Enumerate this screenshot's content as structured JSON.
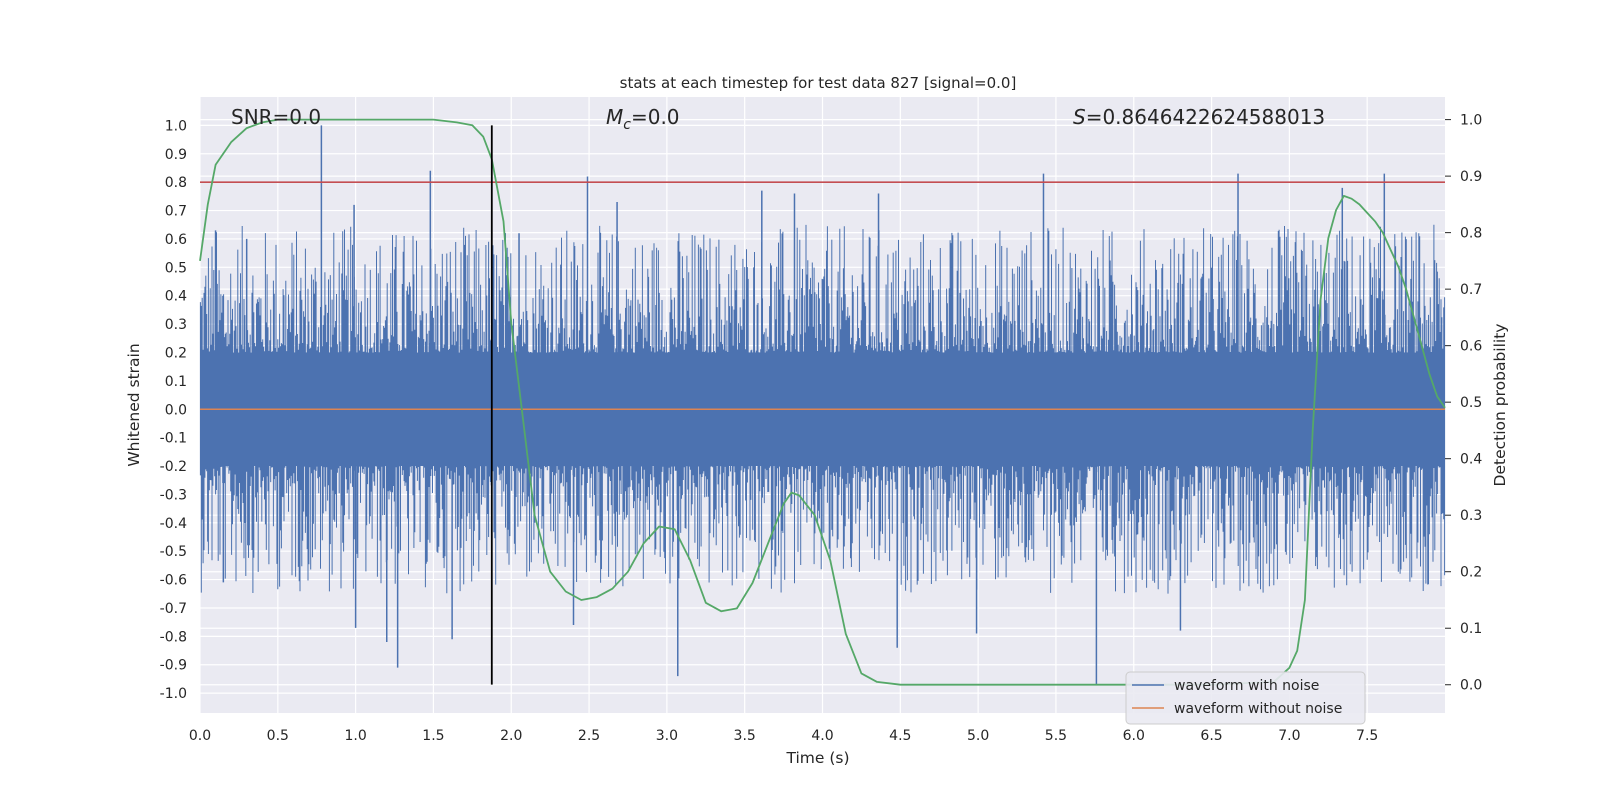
{
  "chart_data": {
    "type": "line",
    "title": "stats at each timestep for test data 827 [signal=0.0]",
    "xlabel": "Time (s)",
    "ylabel_left": "Whitened strain",
    "ylabel_right": "Detection probability",
    "xlim": [
      0.0,
      8.0
    ],
    "ylim_left": [
      -1.07,
      1.1
    ],
    "ylim_right": [
      -0.05,
      1.04
    ],
    "x_ticks": [
      "0.0",
      "0.5",
      "1.0",
      "1.5",
      "2.0",
      "2.5",
      "3.0",
      "3.5",
      "4.0",
      "4.5",
      "5.0",
      "5.5",
      "6.0",
      "6.5",
      "7.0",
      "7.5"
    ],
    "y_ticks_left": [
      "1.0",
      "0.9",
      "0.8",
      "0.7",
      "0.6",
      "0.5",
      "0.4",
      "0.3",
      "0.2",
      "0.1",
      "0.0",
      "-0.1",
      "-0.2",
      "-0.3",
      "-0.4",
      "-0.5",
      "-0.6",
      "-0.7",
      "-0.8",
      "-0.9",
      "-1.0"
    ],
    "y_ticks_right": [
      "1.0",
      "0.9",
      "0.8",
      "0.7",
      "0.6",
      "0.5",
      "0.4",
      "0.3",
      "0.2",
      "0.1",
      "0.0"
    ],
    "grid": true,
    "legend_placement": "lower-right",
    "annotations": {
      "snr": "SNR=0.0",
      "mc_symbol": "M",
      "mc_subscript": "c",
      "mc_value": "=0.0",
      "s_symbol": "S",
      "s_value": "=0.8646422624588013"
    },
    "threshold_left": 0.8,
    "vline_x": 1.875,
    "vline_range": [
      -0.97,
      1.0
    ],
    "series": [
      {
        "name": "waveform with noise",
        "color": "#4c72b0",
        "axis": "left",
        "style": "dense-noise",
        "dense_amplitude": 0.18,
        "spike_peaks": [
          {
            "x": 0.78,
            "y": 1.0
          },
          {
            "x": 1.48,
            "y": 0.84
          },
          {
            "x": 0.99,
            "y": 0.72
          },
          {
            "x": 2.49,
            "y": 0.82
          },
          {
            "x": 2.68,
            "y": 0.73
          },
          {
            "x": 5.42,
            "y": 0.83
          },
          {
            "x": 6.67,
            "y": 0.83
          },
          {
            "x": 7.61,
            "y": 0.83
          },
          {
            "x": 7.34,
            "y": 0.78
          },
          {
            "x": 3.61,
            "y": 0.77
          },
          {
            "x": 3.82,
            "y": 0.76
          },
          {
            "x": 4.36,
            "y": 0.76
          },
          {
            "x": 0.1,
            "y": 0.63
          },
          {
            "x": 0.3,
            "y": 0.6
          },
          {
            "x": 2.05,
            "y": 0.62
          }
        ],
        "spike_troughs": [
          {
            "x": 1.27,
            "y": -0.91
          },
          {
            "x": 1.2,
            "y": -0.82
          },
          {
            "x": 1.62,
            "y": -0.81
          },
          {
            "x": 3.07,
            "y": -0.94
          },
          {
            "x": 5.76,
            "y": -0.97
          },
          {
            "x": 4.48,
            "y": -0.84
          },
          {
            "x": 6.3,
            "y": -0.78
          },
          {
            "x": 4.99,
            "y": -0.79
          },
          {
            "x": 1.0,
            "y": -0.77
          },
          {
            "x": 2.4,
            "y": -0.76
          },
          {
            "x": 0.15,
            "y": -0.61
          }
        ]
      },
      {
        "name": "waveform without noise",
        "color": "#dd8452",
        "axis": "left",
        "x": [
          0.0,
          8.0
        ],
        "y": [
          0.0,
          0.0
        ]
      },
      {
        "name": "",
        "color": "#55a868",
        "axis": "right",
        "x": [
          0.0,
          0.05,
          0.1,
          0.2,
          0.3,
          0.4,
          0.5,
          0.75,
          1.0,
          1.25,
          1.5,
          1.65,
          1.75,
          1.82,
          1.875,
          1.95,
          2.0,
          2.08,
          2.15,
          2.25,
          2.35,
          2.45,
          2.55,
          2.65,
          2.75,
          2.85,
          2.95,
          3.05,
          3.15,
          3.25,
          3.35,
          3.45,
          3.55,
          3.65,
          3.75,
          3.8,
          3.85,
          3.95,
          4.05,
          4.15,
          4.25,
          4.35,
          4.5,
          5.0,
          5.5,
          6.0,
          6.5,
          6.9,
          7.0,
          7.05,
          7.1,
          7.15,
          7.2,
          7.25,
          7.3,
          7.35,
          7.4,
          7.45,
          7.5,
          7.55,
          7.6,
          7.65,
          7.7,
          7.75,
          7.8,
          7.85,
          7.9,
          7.95,
          8.0
        ],
        "y": [
          0.75,
          0.85,
          0.92,
          0.96,
          0.985,
          0.995,
          1.0,
          1.0,
          1.0,
          1.0,
          1.0,
          0.995,
          0.99,
          0.97,
          0.93,
          0.82,
          0.64,
          0.46,
          0.3,
          0.2,
          0.165,
          0.15,
          0.155,
          0.17,
          0.2,
          0.25,
          0.28,
          0.275,
          0.22,
          0.145,
          0.13,
          0.135,
          0.18,
          0.25,
          0.32,
          0.34,
          0.335,
          0.3,
          0.22,
          0.09,
          0.02,
          0.005,
          0.0,
          0.0,
          0.0,
          0.0,
          0.0,
          0.005,
          0.03,
          0.06,
          0.15,
          0.45,
          0.68,
          0.79,
          0.84,
          0.865,
          0.86,
          0.85,
          0.835,
          0.82,
          0.8,
          0.77,
          0.74,
          0.7,
          0.65,
          0.6,
          0.55,
          0.51,
          0.49
        ]
      },
      {
        "name": "",
        "color": "#c44e52",
        "axis": "left",
        "x": [
          0.0,
          8.0
        ],
        "y": [
          0.8,
          0.8
        ]
      }
    ]
  }
}
